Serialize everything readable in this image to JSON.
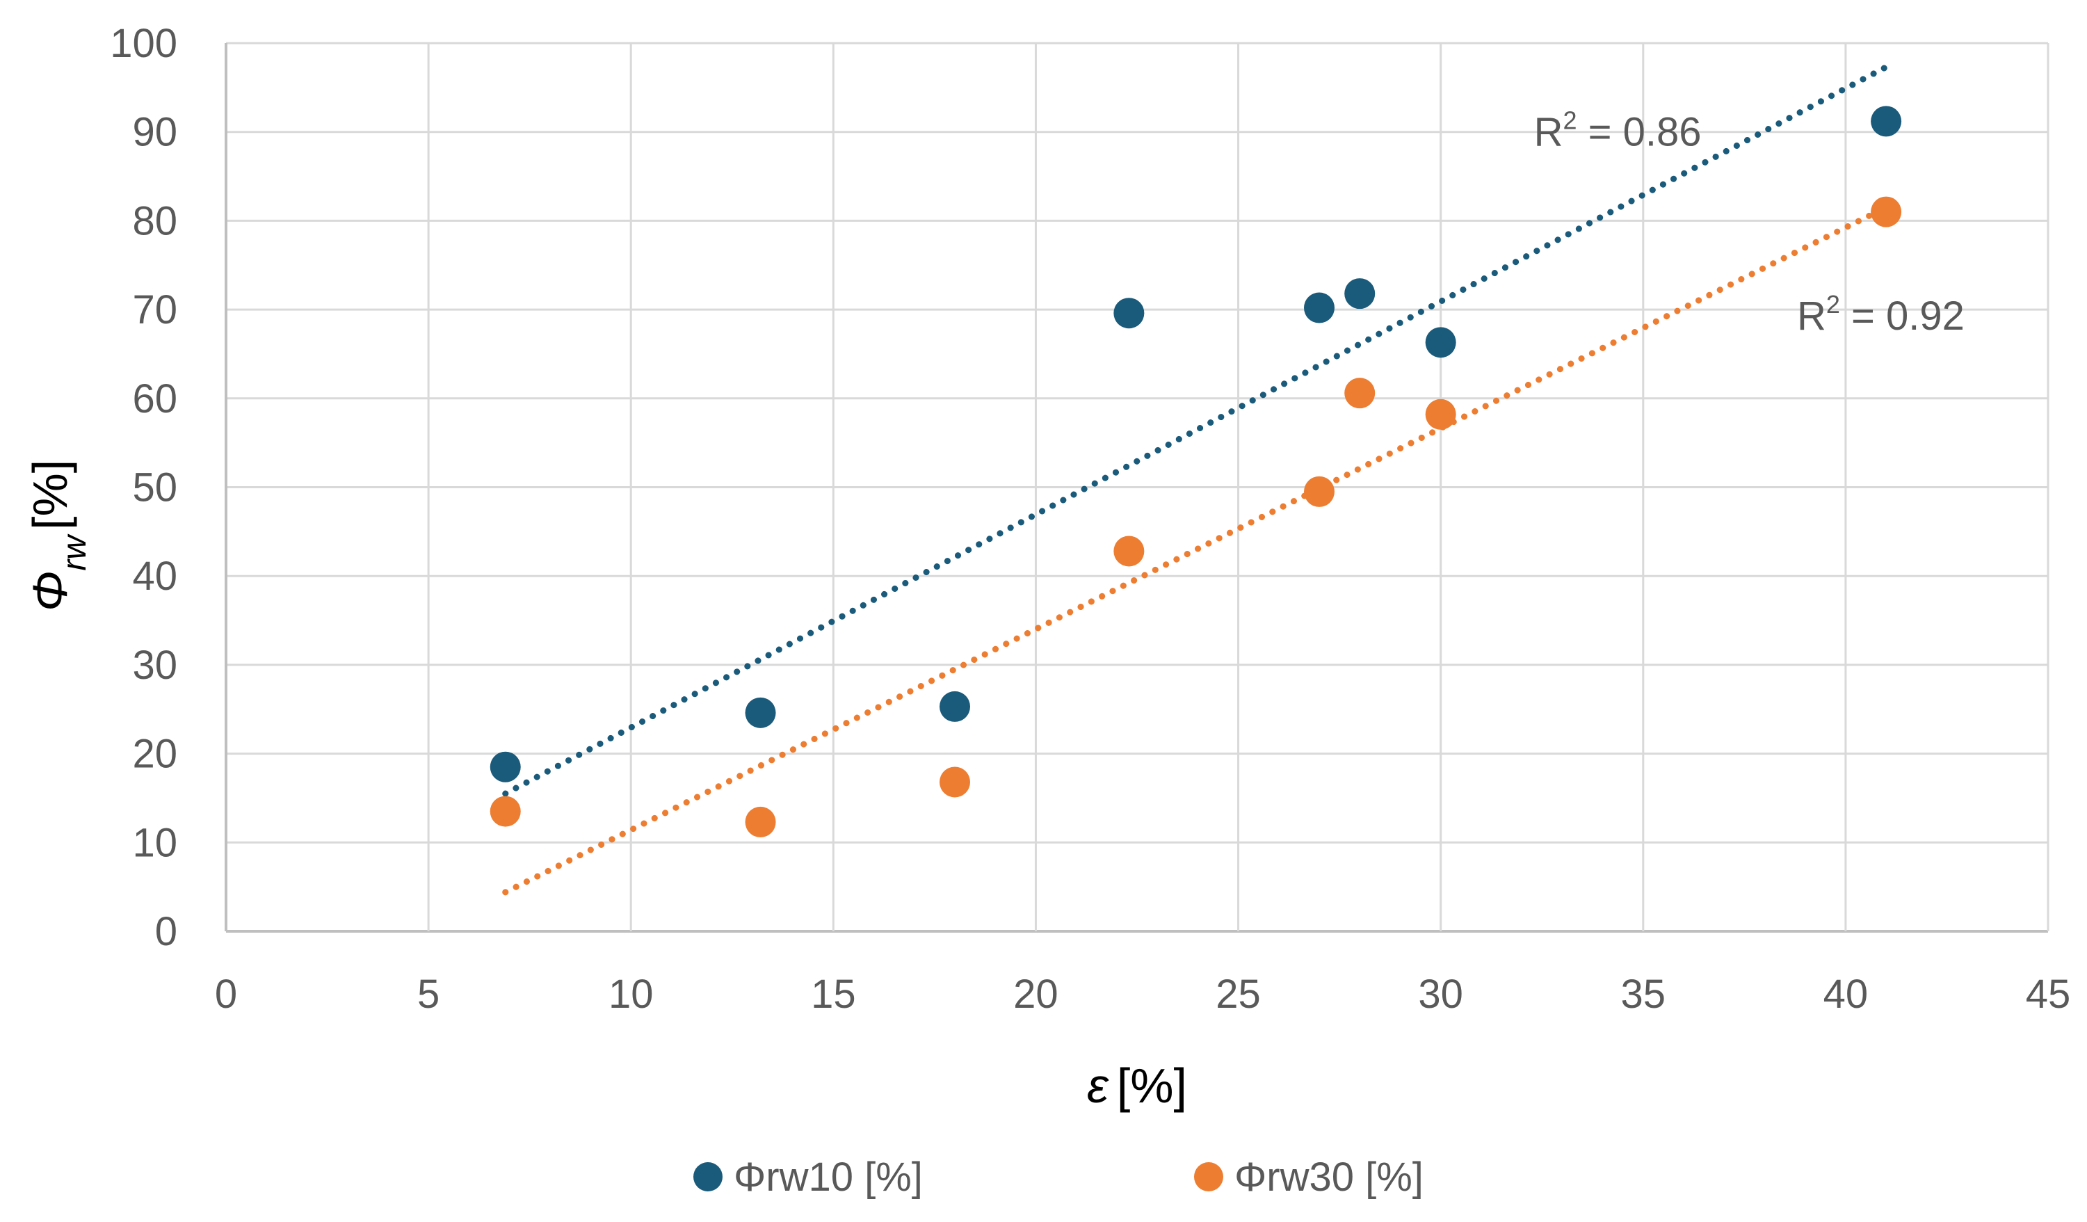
{
  "chart_data": {
    "type": "scatter",
    "title": "",
    "xlabel_symbol": "ε",
    "xlabel_unit": "[%]",
    "ylabel_symbol": "Φ",
    "ylabel_subscript": "rw",
    "ylabel_unit": "[%]",
    "xlim": [
      0,
      45
    ],
    "ylim": [
      0,
      100
    ],
    "x_ticks": [
      0,
      5,
      10,
      15,
      20,
      25,
      30,
      35,
      40,
      45
    ],
    "y_ticks": [
      0,
      10,
      20,
      30,
      40,
      50,
      60,
      70,
      80,
      90,
      100
    ],
    "x_tick_labels": [
      "0",
      "5",
      "10",
      "15",
      "20",
      "25",
      "30",
      "35",
      "40",
      "45"
    ],
    "y_tick_labels": [
      "0",
      "10",
      "20",
      "30",
      "40",
      "50",
      "60",
      "70",
      "80",
      "90",
      "100"
    ],
    "grid": true,
    "legend_position": "bottom",
    "series": [
      {
        "name": "Φrw10 [%]",
        "color": "#1a5a7a",
        "x": [
          6.9,
          13.2,
          18.0,
          22.3,
          27.0,
          28.0,
          30.0,
          41.0
        ],
        "y": [
          18.5,
          24.6,
          25.3,
          69.6,
          70.2,
          71.8,
          66.3,
          91.2
        ],
        "trendline": {
          "style": "dotted",
          "x_range": [
            6.9,
            41.0
          ],
          "y_range": [
            15.5,
            97.3
          ],
          "r2_label": "R² = 0.86",
          "r2_base": "R",
          "r2_exp": "2",
          "r2_rest": " = 0.86",
          "label_anchor_x": 32.3,
          "label_anchor_y": 90.0
        }
      },
      {
        "name": "Φrw30 [%]",
        "color": "#ed7d31",
        "x": [
          6.9,
          13.2,
          18.0,
          22.3,
          27.0,
          28.0,
          30.0,
          41.0
        ],
        "y": [
          13.5,
          12.3,
          16.8,
          42.8,
          49.5,
          60.6,
          58.2,
          81.0
        ],
        "trendline": {
          "style": "dotted",
          "x_range": [
            6.9,
            41.0
          ],
          "y_range": [
            4.4,
            81.5
          ],
          "r2_label": "R² = 0.92",
          "r2_base": "R",
          "r2_exp": "2",
          "r2_rest": " = 0.92",
          "label_anchor_x": 38.8,
          "label_anchor_y": 69.3
        }
      }
    ],
    "colors": {
      "grid": "#d9d9d9",
      "axis": "#bfbfbf",
      "text": "#595959"
    }
  }
}
